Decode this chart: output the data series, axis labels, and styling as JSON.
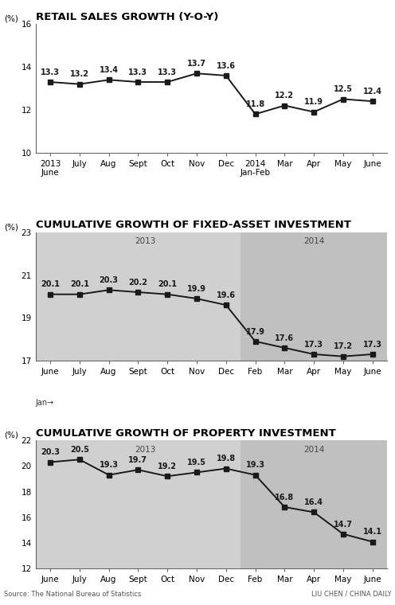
{
  "chart1": {
    "title": "RETAIL SALES GROWTH (Y-O-Y)",
    "ylabel": "(%)",
    "xlabels": [
      "2013\nJune",
      "July",
      "Aug",
      "Sept",
      "Oct",
      "Nov",
      "Dec",
      "2014\nJan-Feb",
      "Mar",
      "Apr",
      "May",
      "June"
    ],
    "values": [
      13.3,
      13.2,
      13.4,
      13.3,
      13.3,
      13.7,
      13.6,
      11.8,
      12.2,
      11.9,
      12.5,
      12.4
    ],
    "ylim": [
      10,
      16
    ],
    "yticks": [
      10,
      12,
      14,
      16
    ],
    "has_bg": false
  },
  "chart2": {
    "title": "CUMULATIVE GROWTH OF FIXED-ASSET INVESTMENT",
    "ylabel": "(%)",
    "xlabels": [
      "June",
      "July",
      "Aug",
      "Sept",
      "Oct",
      "Nov",
      "Dec",
      "Feb",
      "Mar",
      "Apr",
      "May",
      "June"
    ],
    "values": [
      20.1,
      20.1,
      20.3,
      20.2,
      20.1,
      19.9,
      19.6,
      17.9,
      17.6,
      17.3,
      17.2,
      17.3
    ],
    "ylim": [
      17,
      23
    ],
    "yticks": [
      17,
      19,
      21,
      23
    ],
    "has_bg": true,
    "year_label_2013": "2013",
    "year_label_2014": "2014",
    "split_idx": 7,
    "xlabel_bottom": "Jan→"
  },
  "chart3": {
    "title": "CUMULATIVE GROWTH OF PROPERTY INVESTMENT",
    "ylabel": "(%)",
    "xlabels": [
      "June",
      "July",
      "Aug",
      "Sept",
      "Oct",
      "Nov",
      "Dec",
      "Feb",
      "Mar",
      "Apr",
      "May",
      "June"
    ],
    "values": [
      20.3,
      20.5,
      19.3,
      19.7,
      19.2,
      19.5,
      19.8,
      19.3,
      16.8,
      16.4,
      14.7,
      14.1
    ],
    "ylim": [
      12,
      22
    ],
    "yticks": [
      12,
      14,
      16,
      18,
      20,
      22
    ],
    "has_bg": true,
    "year_label_2013": "2013",
    "year_label_2014": "2014",
    "split_idx": 7,
    "xlabel_bottom": "Jan→"
  },
  "line_color": "#1a1a1a",
  "marker": "s",
  "markersize": 4.5,
  "label_fontsize": 7.0,
  "title_fontsize": 9.5,
  "tick_fontsize": 7.5,
  "ylabel_fontsize": 7.5,
  "source_text": "Source: The National Bureau of Statistics",
  "credit_text": "LIU CHEN / CHINA DAILY",
  "bg_light": "#d0d0d0",
  "bg_dark": "#c0c0c0"
}
